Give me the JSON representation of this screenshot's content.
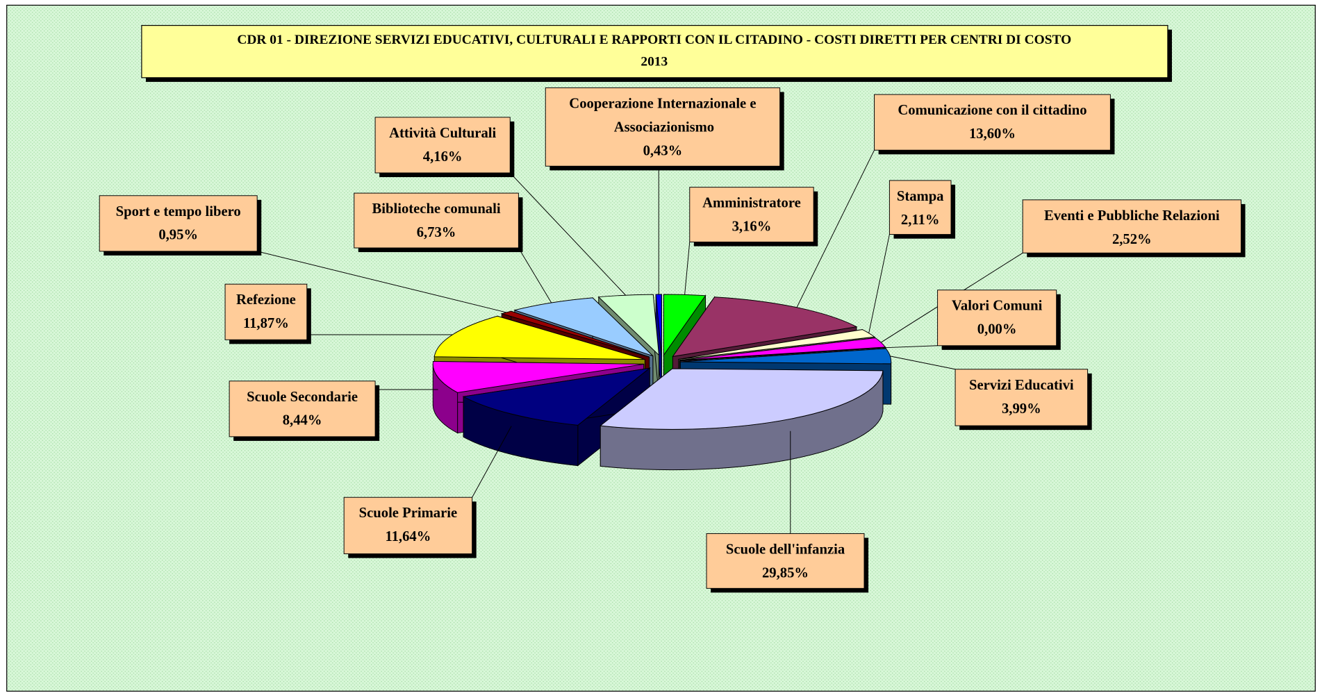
{
  "chart_data": {
    "type": "pie3d",
    "title": "CDR 01 -  DIREZIONE SERVIZI EDUCATIVI, CULTURALI E RAPPORTI CON IL CITADINO -  COSTI DIRETTI  PER CENTRI DI COSTO",
    "subtitle": "2013",
    "categories": [
      "Amministratore",
      "Comunicazione con il cittadino",
      "Stampa",
      "Eventi e Pubbliche Relazioni",
      "Valori Comuni",
      "Servizi Educativi",
      "Scuole dell'infanzia",
      "Scuole Primarie",
      "Scuole Secondarie",
      "Refezione",
      "Sport e tempo libero",
      "Biblioteche comunali",
      "Attività Culturali",
      "Cooperazione Internazionale e Associazionismo"
    ],
    "values": [
      3.16,
      13.6,
      2.11,
      2.52,
      0.0,
      3.99,
      29.85,
      11.64,
      8.44,
      11.87,
      0.95,
      6.73,
      4.16,
      0.43
    ],
    "value_labels": [
      "3,16%",
      "13,60%",
      "2,11%",
      "2,52%",
      "0,00%",
      "3,99%",
      "29,85%",
      "11,64%",
      "8,44%",
      "11,87%",
      "0,95%",
      "6,73%",
      "4,16%",
      "0,43%"
    ],
    "colors": [
      "#00ff00",
      "#993366",
      "#ffffcc",
      "#ff00ff",
      "#cc99ff",
      "#0066cc",
      "#ccccff",
      "#000080",
      "#ff00ff",
      "#ffff00",
      "#990000",
      "#99ccff",
      "#ccffcc",
      "#0000ff"
    ]
  }
}
